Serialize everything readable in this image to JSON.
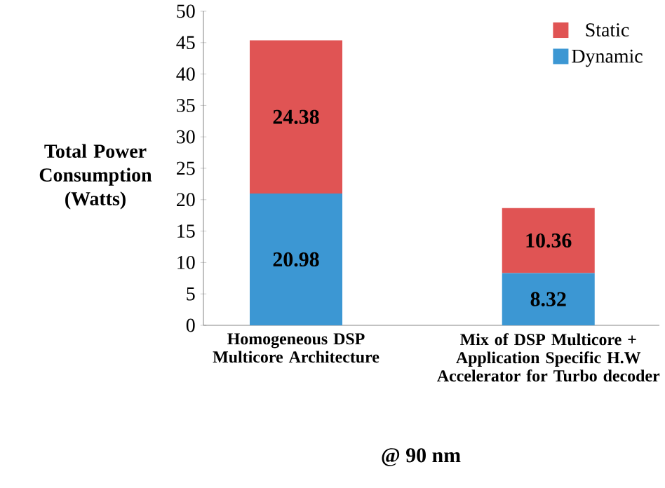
{
  "chart_data": {
    "type": "bar",
    "stacked": true,
    "xlabel": "@ 90 nm",
    "ylabel": "Total Power Consumption (Watts)",
    "categories": [
      "Homogeneous DSP Multicore Architecture",
      "Mix of DSP Multicore + Application Specific H.W Accelerator for Turbo decoder"
    ],
    "series": [
      {
        "name": "Dynamic",
        "color": "#3c97d3",
        "values": [
          20.98,
          8.32
        ]
      },
      {
        "name": "Static",
        "color": "#e05454",
        "values": [
          24.38,
          10.36
        ]
      }
    ],
    "ylim": [
      0,
      50
    ],
    "yticks": [
      0,
      5,
      10,
      15,
      20,
      25,
      30,
      35,
      40,
      45,
      50
    ],
    "data_labels": true,
    "legend": "top right"
  }
}
